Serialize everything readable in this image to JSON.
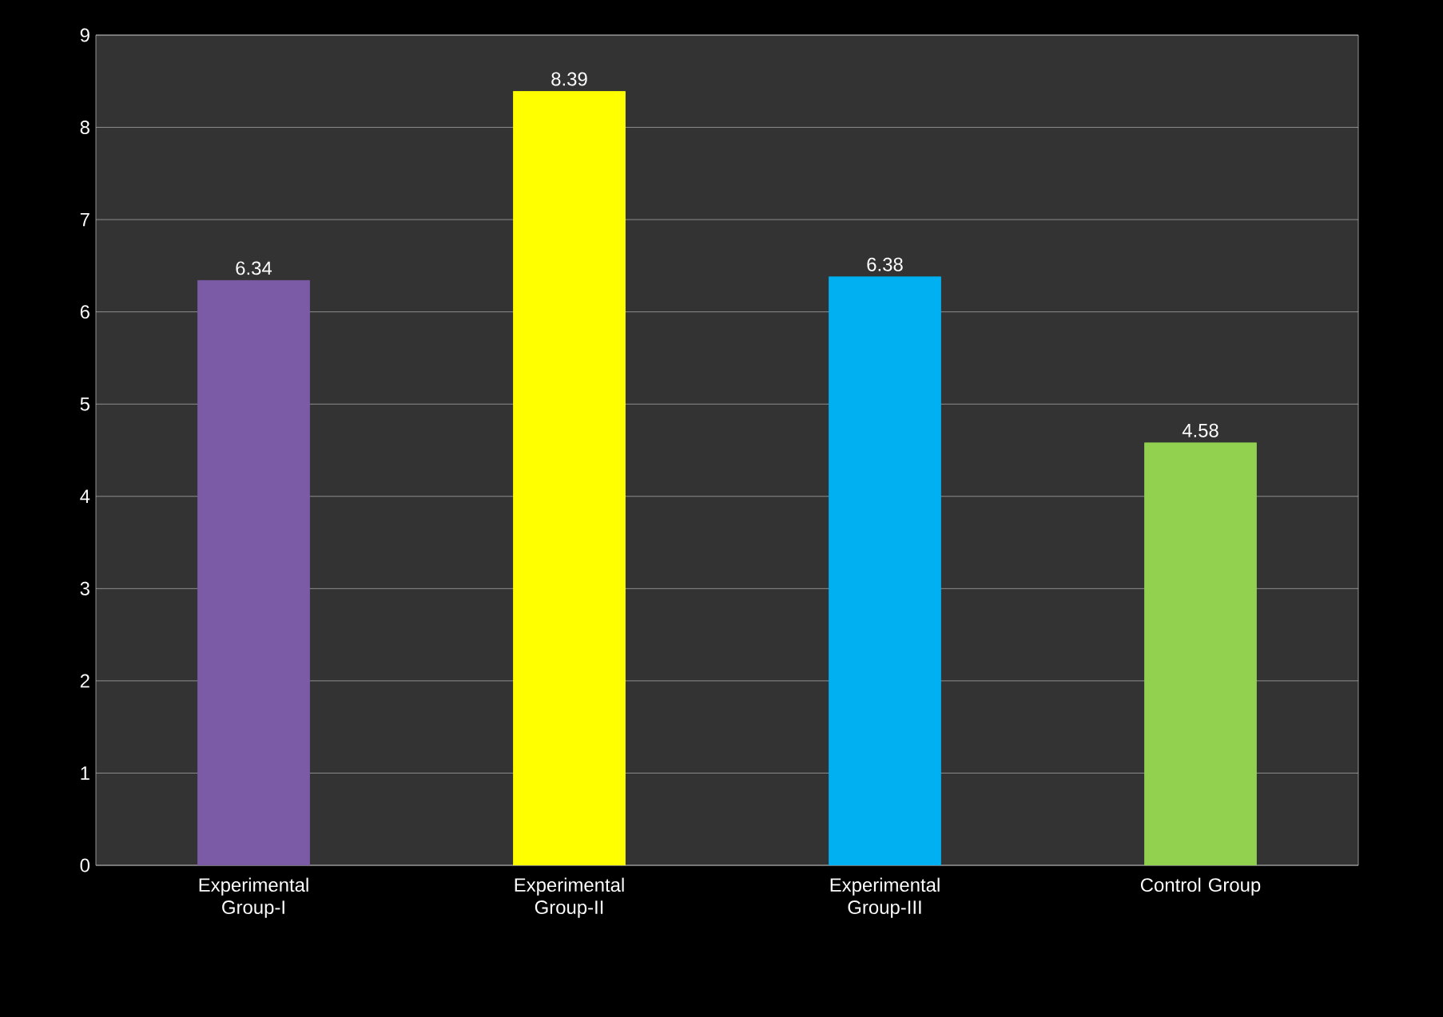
{
  "chart_data": {
    "type": "bar",
    "categories": [
      "Experimental Group-I",
      "Experimental Group-II",
      "Experimental Group-III",
      "Control Group"
    ],
    "values": [
      6.34,
      8.39,
      6.38,
      4.58
    ],
    "colors": [
      "#7b5aa6",
      "#ffff00",
      "#00b0f0",
      "#92d050"
    ],
    "ylim": [
      0,
      9
    ],
    "yticks": [
      0,
      1,
      2,
      3,
      4,
      5,
      6,
      7,
      8,
      9
    ],
    "grid": "y",
    "data_labels": true
  }
}
